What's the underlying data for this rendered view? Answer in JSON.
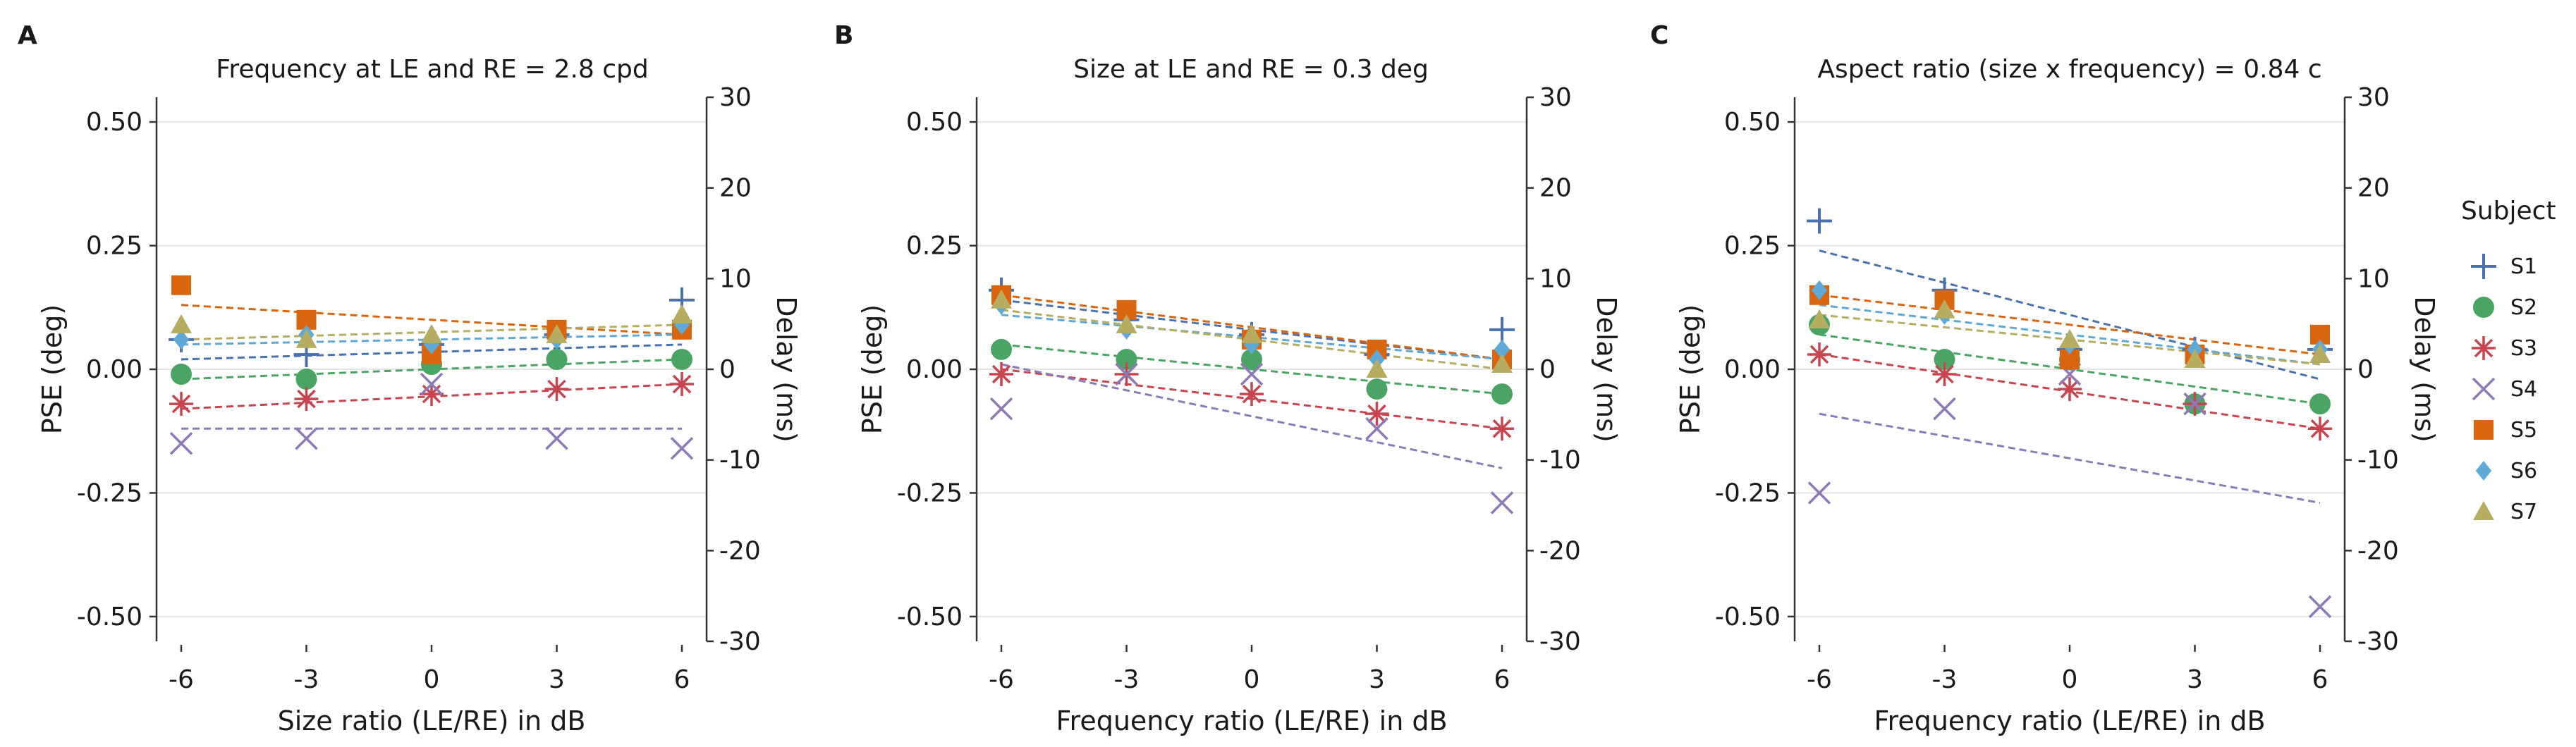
{
  "chart_data": [
    {
      "type": "scatter",
      "panel": "A",
      "title": "Frequency at LE and RE = 2.8 cpd",
      "xlabel": "Size ratio (LE/RE) in dB",
      "ylabel": "PSE (deg)",
      "y2label": "Delay (ms)",
      "x": [
        -6,
        -3,
        0,
        3,
        6
      ],
      "x_ticks": [
        "-6",
        "-3",
        "0",
        "3",
        "6"
      ],
      "y_ticks": [
        "0.50",
        "0.25",
        "0.00",
        "-0.25",
        "-0.50"
      ],
      "y2_ticks": [
        "30",
        "20",
        "10",
        "0",
        "-10",
        "-20",
        "-30"
      ],
      "ylim": [
        -0.55,
        0.55
      ],
      "y2lim": [
        -30,
        30
      ],
      "series": [
        {
          "name": "S1",
          "values": [
            0.06,
            0.03,
            0.05,
            0.07,
            0.14
          ],
          "fit": [
            0.02,
            0.05
          ]
        },
        {
          "name": "S2",
          "values": [
            -0.01,
            -0.02,
            0.01,
            0.02,
            0.02
          ],
          "fit": [
            -0.02,
            0.02
          ]
        },
        {
          "name": "S3",
          "values": [
            -0.07,
            -0.06,
            -0.05,
            -0.04,
            -0.03
          ],
          "fit": [
            -0.08,
            -0.03
          ]
        },
        {
          "name": "S4",
          "values": [
            -0.15,
            -0.14,
            -0.03,
            -0.14,
            -0.16
          ],
          "fit": [
            -0.12,
            -0.12
          ]
        },
        {
          "name": "S5",
          "values": [
            0.17,
            0.1,
            0.03,
            0.08,
            0.08
          ],
          "fit": [
            0.13,
            0.07
          ]
        },
        {
          "name": "S6",
          "values": [
            0.06,
            0.07,
            0.05,
            0.06,
            0.09
          ],
          "fit": [
            0.05,
            0.07
          ]
        },
        {
          "name": "S7",
          "values": [
            0.09,
            0.06,
            0.07,
            0.07,
            0.11
          ],
          "fit": [
            0.06,
            0.09
          ]
        }
      ]
    },
    {
      "type": "scatter",
      "panel": "B",
      "title": "Size at LE and RE = 0.3 deg",
      "xlabel": "Frequency ratio (LE/RE) in dB",
      "ylabel": "PSE (deg)",
      "y2label": "Delay (ms)",
      "x": [
        -6,
        -3,
        0,
        3,
        6
      ],
      "x_ticks": [
        "-6",
        "-3",
        "0",
        "3",
        "6"
      ],
      "y_ticks": [
        "0.50",
        "0.25",
        "0.00",
        "-0.25",
        "-0.50"
      ],
      "y2_ticks": [
        "30",
        "20",
        "10",
        "0",
        "-10",
        "-20",
        "-30"
      ],
      "ylim": [
        -0.55,
        0.55
      ],
      "y2lim": [
        -30,
        30
      ],
      "series": [
        {
          "name": "S1",
          "values": [
            0.16,
            0.1,
            0.07,
            0.03,
            0.08
          ],
          "fit": [
            0.14,
            0.02
          ]
        },
        {
          "name": "S2",
          "values": [
            0.04,
            0.02,
            0.02,
            -0.04,
            -0.05
          ],
          "fit": [
            0.05,
            -0.05
          ]
        },
        {
          "name": "S3",
          "values": [
            -0.01,
            -0.01,
            -0.05,
            -0.09,
            -0.12
          ],
          "fit": [
            0.0,
            -0.12
          ]
        },
        {
          "name": "S4",
          "values": [
            -0.08,
            -0.01,
            -0.01,
            -0.12,
            -0.27
          ],
          "fit": [
            0.01,
            -0.2
          ]
        },
        {
          "name": "S5",
          "values": [
            0.15,
            0.12,
            0.06,
            0.04,
            0.02
          ],
          "fit": [
            0.15,
            0.02
          ]
        },
        {
          "name": "S6",
          "values": [
            0.13,
            0.08,
            0.05,
            0.02,
            0.04
          ],
          "fit": [
            0.11,
            0.02
          ]
        },
        {
          "name": "S7",
          "values": [
            0.14,
            0.09,
            0.07,
            0.0,
            0.01
          ],
          "fit": [
            0.12,
            0.0
          ]
        }
      ]
    },
    {
      "type": "scatter",
      "panel": "C",
      "title": "Aspect ratio (size x frequency) = 0.84 c",
      "xlabel": "Frequency ratio (LE/RE) in dB",
      "ylabel": "PSE (deg)",
      "y2label": "Delay (ms)",
      "x": [
        -6,
        -3,
        0,
        3,
        6
      ],
      "x_ticks": [
        "-6",
        "-3",
        "0",
        "3",
        "6"
      ],
      "y_ticks": [
        "0.50",
        "0.25",
        "0.00",
        "-0.25",
        "-0.50"
      ],
      "y2_ticks": [
        "30",
        "20",
        "10",
        "0",
        "-10",
        "-20",
        "-30"
      ],
      "ylim": [
        -0.55,
        0.55
      ],
      "y2lim": [
        -30,
        30
      ],
      "series": [
        {
          "name": "S1",
          "values": [
            0.3,
            0.16,
            0.04,
            0.04,
            0.04
          ],
          "fit": [
            0.24,
            -0.02
          ]
        },
        {
          "name": "S2",
          "values": [
            0.09,
            0.02,
            0.02,
            -0.07,
            -0.07
          ],
          "fit": [
            0.07,
            -0.07
          ]
        },
        {
          "name": "S3",
          "values": [
            0.03,
            -0.01,
            -0.04,
            -0.07,
            -0.12
          ],
          "fit": [
            0.03,
            -0.12
          ]
        },
        {
          "name": "S4",
          "values": [
            -0.25,
            -0.08,
            -0.01,
            -0.07,
            -0.48
          ],
          "fit": [
            -0.09,
            -0.27
          ]
        },
        {
          "name": "S5",
          "values": [
            0.15,
            0.14,
            0.02,
            0.03,
            0.07
          ],
          "fit": [
            0.15,
            0.03
          ]
        },
        {
          "name": "S6",
          "values": [
            0.16,
            0.11,
            0.05,
            0.04,
            0.04
          ],
          "fit": [
            0.13,
            0.01
          ]
        },
        {
          "name": "S7",
          "values": [
            0.1,
            0.12,
            0.06,
            0.02,
            0.03
          ],
          "fit": [
            0.11,
            0.01
          ]
        }
      ]
    }
  ],
  "legend": {
    "title": "Subject",
    "items": [
      {
        "name": "S1",
        "color": "#4a72b0",
        "marker": "plus"
      },
      {
        "name": "S2",
        "color": "#4aa564",
        "marker": "circle"
      },
      {
        "name": "S3",
        "color": "#c8454f",
        "marker": "asterisk"
      },
      {
        "name": "S4",
        "color": "#8d7ab8",
        "marker": "x"
      },
      {
        "name": "S5",
        "color": "#d9660e",
        "marker": "square"
      },
      {
        "name": "S6",
        "color": "#5ea9d6",
        "marker": "diamond"
      },
      {
        "name": "S7",
        "color": "#b6ad60",
        "marker": "triangle"
      }
    ]
  }
}
